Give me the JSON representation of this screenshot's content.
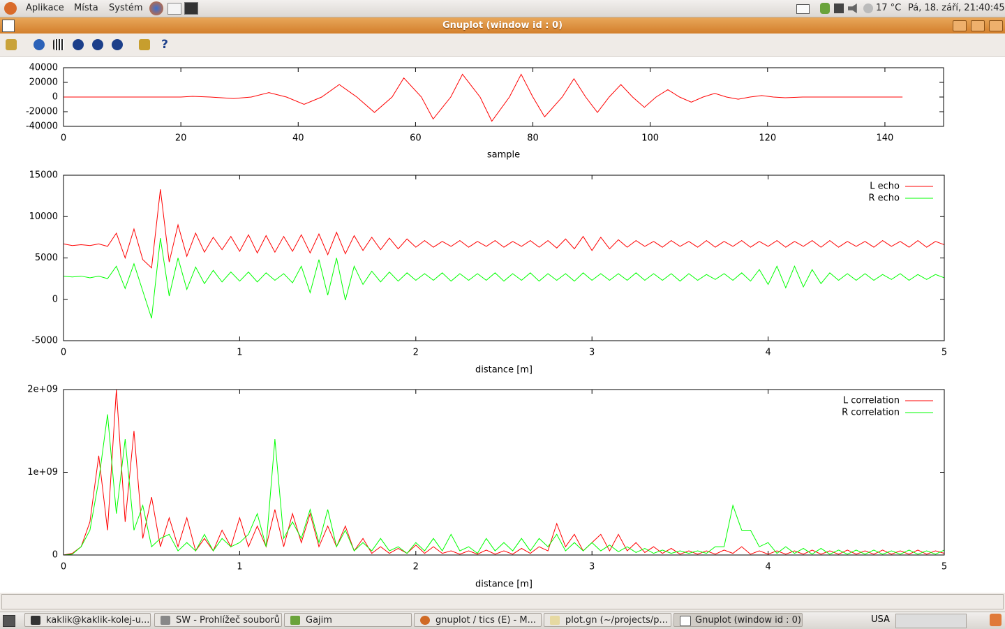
{
  "panel": {
    "menu": [
      "Aplikace",
      "Místa",
      "Systém"
    ],
    "weather": "17 °C",
    "clock": "Pá, 18. září, 21:40:45"
  },
  "window": {
    "title": "Gnuplot (window id : 0)"
  },
  "taskbar": {
    "items": [
      "kaklik@kaklik-kolej-u...",
      "SW - Prohlížeč souborů",
      "Gajim",
      "gnuplot / tics (E) - M...",
      "plot.gn (~/projects/p...",
      "Gnuplot (window id : 0)"
    ],
    "keyboard": "USA"
  },
  "chart_data": [
    {
      "type": "line",
      "xlabel": "sample",
      "color": "#ff0000",
      "x": [
        0,
        5,
        10,
        15,
        20,
        22,
        25,
        29,
        32,
        35,
        38,
        41,
        44,
        47,
        50,
        53,
        56,
        58,
        61,
        63,
        66,
        68,
        71,
        73,
        76,
        78,
        80,
        82,
        85,
        87,
        89,
        91,
        93,
        95,
        97,
        99,
        101,
        103,
        105,
        107,
        109,
        111,
        113,
        115,
        117,
        119,
        121,
        123,
        126,
        130,
        135,
        143
      ],
      "values": [
        0,
        0,
        0,
        0,
        0,
        1000,
        0,
        -2000,
        0,
        6000,
        0,
        -10000,
        0,
        17000,
        0,
        -21000,
        0,
        26000,
        0,
        -30000,
        0,
        31000,
        0,
        -33000,
        0,
        31000,
        0,
        -27000,
        0,
        25000,
        0,
        -21000,
        0,
        17000,
        0,
        -14000,
        0,
        10000,
        0,
        -7000,
        0,
        5000,
        0,
        -3000,
        0,
        2000,
        0,
        -1000,
        0,
        0,
        0,
        0
      ],
      "xlim": [
        0,
        150
      ],
      "xticks": [
        0,
        20,
        40,
        60,
        80,
        100,
        120,
        140
      ],
      "ylim": [
        -40000,
        40000
      ],
      "yticks": [
        -40000,
        -20000,
        0,
        20000,
        40000
      ]
    },
    {
      "type": "line",
      "xlabel": "distance [m]",
      "legend": "upper right",
      "x": [
        0,
        0.05,
        0.1,
        0.15,
        0.2,
        0.25,
        0.3,
        0.35,
        0.4,
        0.45,
        0.5,
        0.55,
        0.6,
        0.65,
        0.7,
        0.75,
        0.8,
        0.85,
        0.9,
        0.95,
        1,
        1.05,
        1.1,
        1.15,
        1.2,
        1.25,
        1.3,
        1.35,
        1.4,
        1.45,
        1.5,
        1.55,
        1.6,
        1.65,
        1.7,
        1.75,
        1.8,
        1.85,
        1.9,
        1.95,
        2,
        2.05,
        2.1,
        2.15,
        2.2,
        2.25,
        2.3,
        2.35,
        2.4,
        2.45,
        2.5,
        2.55,
        2.6,
        2.65,
        2.7,
        2.75,
        2.8,
        2.85,
        2.9,
        2.95,
        3,
        3.05,
        3.1,
        3.15,
        3.2,
        3.25,
        3.3,
        3.35,
        3.4,
        3.45,
        3.5,
        3.55,
        3.6,
        3.65,
        3.7,
        3.75,
        3.8,
        3.85,
        3.9,
        3.95,
        4,
        4.05,
        4.1,
        4.15,
        4.2,
        4.25,
        4.3,
        4.35,
        4.4,
        4.45,
        4.5,
        4.55,
        4.6,
        4.65,
        4.7,
        4.75,
        4.8,
        4.85,
        4.9,
        4.95,
        5
      ],
      "series": [
        {
          "name": "L echo",
          "color": "#ff0000",
          "values": [
            6700,
            6500,
            6600,
            6500,
            6700,
            6400,
            8000,
            5000,
            8500,
            4800,
            3800,
            13300,
            4500,
            9000,
            5200,
            8000,
            5700,
            7500,
            6000,
            7600,
            5800,
            7800,
            5600,
            7700,
            5700,
            7600,
            5800,
            7800,
            5600,
            7900,
            5400,
            8100,
            5500,
            7700,
            5900,
            7500,
            6000,
            7400,
            6100,
            7300,
            6300,
            7100,
            6300,
            7000,
            6400,
            7100,
            6300,
            7000,
            6400,
            7100,
            6300,
            7000,
            6400,
            7100,
            6300,
            7100,
            6200,
            7300,
            6100,
            7600,
            5900,
            7500,
            6100,
            7200,
            6300,
            7100,
            6400,
            7000,
            6300,
            7100,
            6400,
            7000,
            6300,
            7100,
            6300,
            7000,
            6400,
            7100,
            6300,
            7000,
            6400,
            7100,
            6300,
            7000,
            6400,
            7100,
            6300,
            7100,
            6300,
            7000,
            6400,
            7000,
            6300,
            7100,
            6400,
            7000,
            6300,
            7100,
            6300,
            7000,
            6600
          ]
        },
        {
          "name": "R echo",
          "color": "#00ff00",
          "values": [
            2800,
            2700,
            2800,
            2600,
            2800,
            2500,
            4000,
            1300,
            4300,
            1000,
            -2300,
            7400,
            400,
            5000,
            1200,
            3900,
            1900,
            3500,
            2100,
            3300,
            2200,
            3300,
            2100,
            3200,
            2300,
            3100,
            2000,
            4000,
            800,
            4800,
            500,
            5000,
            -100,
            4000,
            1800,
            3400,
            2100,
            3300,
            2200,
            3200,
            2300,
            3100,
            2300,
            3200,
            2200,
            3100,
            2300,
            3100,
            2300,
            3200,
            2200,
            3100,
            2300,
            3200,
            2200,
            3100,
            2300,
            3100,
            2200,
            3200,
            2300,
            3100,
            2300,
            3100,
            2300,
            3200,
            2300,
            3100,
            2300,
            3100,
            2200,
            3100,
            2300,
            3000,
            2400,
            3100,
            2300,
            3200,
            2200,
            3600,
            1800,
            4000,
            1400,
            4000,
            1500,
            3600,
            1900,
            3200,
            2300,
            3100,
            2300,
            3100,
            2300,
            3000,
            2400,
            3100,
            2300,
            3000,
            2400,
            3000,
            2600
          ]
        }
      ],
      "xlim": [
        0,
        5
      ],
      "xticks": [
        0,
        1,
        2,
        3,
        4,
        5
      ],
      "ylim": [
        -5000,
        15000
      ],
      "yticks": [
        -5000,
        0,
        5000,
        10000,
        15000
      ]
    },
    {
      "type": "line",
      "xlabel": "distance [m]",
      "legend": "upper right",
      "x": [
        0,
        0.05,
        0.1,
        0.15,
        0.2,
        0.25,
        0.3,
        0.35,
        0.4,
        0.45,
        0.5,
        0.55,
        0.6,
        0.65,
        0.7,
        0.75,
        0.8,
        0.85,
        0.9,
        0.95,
        1,
        1.05,
        1.1,
        1.15,
        1.2,
        1.25,
        1.3,
        1.35,
        1.4,
        1.45,
        1.5,
        1.55,
        1.6,
        1.65,
        1.7,
        1.75,
        1.8,
        1.85,
        1.9,
        1.95,
        2,
        2.05,
        2.1,
        2.15,
        2.2,
        2.25,
        2.3,
        2.35,
        2.4,
        2.45,
        2.5,
        2.55,
        2.6,
        2.65,
        2.7,
        2.75,
        2.8,
        2.85,
        2.9,
        2.95,
        3,
        3.05,
        3.1,
        3.15,
        3.2,
        3.25,
        3.3,
        3.35,
        3.4,
        3.45,
        3.5,
        3.55,
        3.6,
        3.65,
        3.7,
        3.75,
        3.8,
        3.85,
        3.9,
        3.95,
        4,
        4.05,
        4.1,
        4.15,
        4.2,
        4.25,
        4.3,
        4.35,
        4.4,
        4.45,
        4.5,
        4.55,
        4.6,
        4.65,
        4.7,
        4.75,
        4.8,
        4.85,
        4.9,
        4.95,
        5
      ],
      "series": [
        {
          "name": "L correlation",
          "color": "#ff0000",
          "values": [
            0,
            20000000.0,
            100000000.0,
            400000000.0,
            1200000000.0,
            300000000.0,
            2000000000.0,
            400000000.0,
            1500000000.0,
            200000000.0,
            700000000.0,
            100000000.0,
            450000000.0,
            100000000.0,
            450000000.0,
            50000000.0,
            200000000.0,
            50000000.0,
            300000000.0,
            100000000.0,
            450000000.0,
            100000000.0,
            350000000.0,
            100000000.0,
            550000000.0,
            100000000.0,
            500000000.0,
            150000000.0,
            500000000.0,
            100000000.0,
            350000000.0,
            100000000.0,
            350000000.0,
            50000000.0,
            200000000.0,
            20000000.0,
            100000000.0,
            20000000.0,
            80000000.0,
            20000000.0,
            120000000.0,
            20000000.0,
            100000000.0,
            20000000.0,
            50000000.0,
            10000000.0,
            50000000.0,
            10000000.0,
            60000000.0,
            10000000.0,
            50000000.0,
            10000000.0,
            80000000.0,
            20000000.0,
            100000000.0,
            50000000.0,
            380000000.0,
            100000000.0,
            250000000.0,
            50000000.0,
            150000000.0,
            250000000.0,
            50000000.0,
            250000000.0,
            50000000.0,
            150000000.0,
            30000000.0,
            100000000.0,
            20000000.0,
            80000000.0,
            10000000.0,
            50000000.0,
            10000000.0,
            50000000.0,
            10000000.0,
            60000000.0,
            20000000.0,
            100000000.0,
            10000000.0,
            50000000.0,
            10000000.0,
            50000000.0,
            10000000.0,
            50000000.0,
            10000000.0,
            60000000.0,
            10000000.0,
            50000000.0,
            10000000.0,
            60000000.0,
            10000000.0,
            50000000.0,
            10000000.0,
            60000000.0,
            10000000.0,
            50000000.0,
            10000000.0,
            60000000.0,
            10000000.0,
            50000000.0,
            20000000.0
          ]
        },
        {
          "name": "R correlation",
          "color": "#00ff00",
          "values": [
            0,
            10000000.0,
            100000000.0,
            300000000.0,
            900000000.0,
            1700000000.0,
            500000000.0,
            1400000000.0,
            300000000.0,
            600000000.0,
            100000000.0,
            200000000.0,
            250000000.0,
            50000000.0,
            150000000.0,
            50000000.0,
            250000000.0,
            50000000.0,
            200000000.0,
            100000000.0,
            150000000.0,
            250000000.0,
            500000000.0,
            100000000.0,
            1400000000.0,
            200000000.0,
            400000000.0,
            200000000.0,
            550000000.0,
            150000000.0,
            550000000.0,
            100000000.0,
            300000000.0,
            50000000.0,
            150000000.0,
            50000000.0,
            200000000.0,
            50000000.0,
            100000000.0,
            20000000.0,
            150000000.0,
            50000000.0,
            200000000.0,
            50000000.0,
            250000000.0,
            50000000.0,
            100000000.0,
            20000000.0,
            200000000.0,
            50000000.0,
            150000000.0,
            50000000.0,
            200000000.0,
            50000000.0,
            200000000.0,
            100000000.0,
            250000000.0,
            50000000.0,
            150000000.0,
            50000000.0,
            150000000.0,
            50000000.0,
            120000000.0,
            40000000.0,
            100000000.0,
            30000000.0,
            80000000.0,
            20000000.0,
            60000000.0,
            20000000.0,
            50000000.0,
            20000000.0,
            50000000.0,
            20000000.0,
            100000000.0,
            100000000.0,
            600000000.0,
            300000000.0,
            300000000.0,
            100000000.0,
            150000000.0,
            20000000.0,
            100000000.0,
            20000000.0,
            80000000.0,
            10000000.0,
            80000000.0,
            10000000.0,
            60000000.0,
            10000000.0,
            60000000.0,
            10000000.0,
            60000000.0,
            10000000.0,
            50000000.0,
            10000000.0,
            60000000.0,
            10000000.0,
            50000000.0,
            10000000.0,
            60000000.0
          ]
        }
      ],
      "xlim": [
        0,
        5
      ],
      "xticks": [
        0,
        1,
        2,
        3,
        4,
        5
      ],
      "ylim": [
        0,
        2000000000.0
      ],
      "yticks": [
        0,
        {
          "value": 1000000000.0,
          "label": "1e+09"
        },
        {
          "value": 2000000000.0,
          "label": "2e+09"
        }
      ]
    }
  ]
}
